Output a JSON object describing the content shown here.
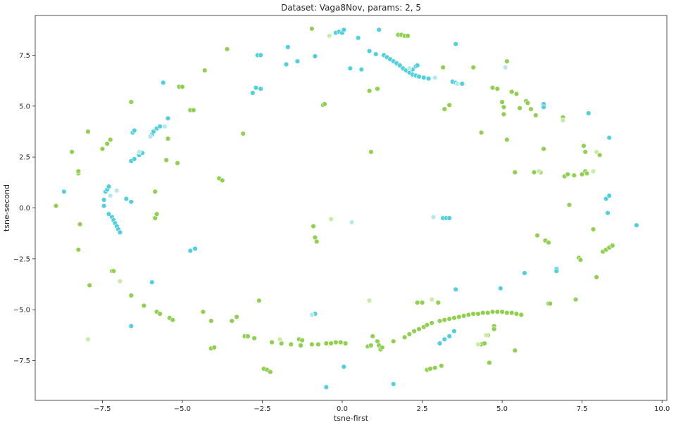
{
  "chart_data": {
    "type": "scatter",
    "title": "Dataset: Vaga8Nov, params: 2, 5",
    "xlabel": "tsne-first",
    "ylabel": "tsne-second",
    "xlim": [
      -9.6,
      10.15
    ],
    "ylim": [
      -9.45,
      9.45
    ],
    "xticks": [
      -7.5,
      -5.0,
      -2.5,
      0.0,
      2.5,
      5.0,
      7.5,
      10.0
    ],
    "xtick_labels": [
      "−7.5",
      "−5.0",
      "−2.5",
      "0.0",
      "2.5",
      "5.0",
      "7.5",
      "10.0"
    ],
    "yticks": [
      -7.5,
      -5.0,
      -2.5,
      0.0,
      2.5,
      5.0,
      7.5
    ],
    "ytick_labels": [
      "−7.5",
      "−5.0",
      "−2.5",
      "0.0",
      "2.5",
      "5.0",
      "7.5"
    ],
    "grid": false,
    "legend": "none",
    "colors": {
      "green": "#8fd14f",
      "cyan": "#4fd0dc",
      "light_green": "#c8eca6",
      "light_cyan": "#b3e9ef"
    },
    "series": [
      {
        "color": "#8fd14f",
        "points": [
          [
            -8.95,
            0.1
          ],
          [
            -8.45,
            2.75
          ],
          [
            -8.25,
            1.7
          ],
          [
            -8.25,
            1.8
          ],
          [
            -8.2,
            -0.8
          ],
          [
            -8.25,
            -2.05
          ],
          [
            -7.95,
            3.75
          ],
          [
            -7.9,
            -3.8
          ],
          [
            -7.5,
            2.9
          ],
          [
            -7.35,
            3.15
          ],
          [
            -7.25,
            3.35
          ],
          [
            -7.2,
            -3.1
          ],
          [
            -7.15,
            -3.1
          ],
          [
            -6.6,
            5.2
          ],
          [
            -6.6,
            -4.3
          ],
          [
            -6.2,
            -4.8
          ],
          [
            -5.85,
            0.8
          ],
          [
            -5.85,
            -0.5
          ],
          [
            -5.8,
            -0.3
          ],
          [
            -5.8,
            -5.1
          ],
          [
            -5.7,
            -5.2
          ],
          [
            -5.5,
            2.35
          ],
          [
            -5.45,
            3.4
          ],
          [
            -5.4,
            -5.4
          ],
          [
            -5.3,
            -5.5
          ],
          [
            -5.15,
            2.2
          ],
          [
            -5.1,
            5.95
          ],
          [
            -5.0,
            5.95
          ],
          [
            -4.75,
            4.8
          ],
          [
            -4.65,
            4.8
          ],
          [
            -4.3,
            6.75
          ],
          [
            -4.35,
            -5.1
          ],
          [
            -4.1,
            -5.55
          ],
          [
            -4.1,
            -6.9
          ],
          [
            -4.0,
            -6.85
          ],
          [
            -3.85,
            1.45
          ],
          [
            -3.75,
            1.35
          ],
          [
            -3.6,
            7.8
          ],
          [
            -3.45,
            -5.55
          ],
          [
            -3.3,
            -5.35
          ],
          [
            -3.1,
            3.65
          ],
          [
            -3.05,
            -6.3
          ],
          [
            -2.95,
            -6.3
          ],
          [
            -2.75,
            -6.4
          ],
          [
            -2.6,
            -4.55
          ],
          [
            -2.45,
            -7.9
          ],
          [
            -2.35,
            -7.95
          ],
          [
            -2.25,
            -8.05
          ],
          [
            -2.2,
            -6.6
          ],
          [
            -1.9,
            -6.65
          ],
          [
            -1.6,
            -6.7
          ],
          [
            -1.35,
            -6.45
          ],
          [
            -1.25,
            -6.5
          ],
          [
            -1.3,
            -6.75
          ],
          [
            -0.95,
            -6.7
          ],
          [
            -0.9,
            -0.9
          ],
          [
            -0.85,
            -1.45
          ],
          [
            -0.8,
            -1.65
          ],
          [
            -0.75,
            -6.7
          ],
          [
            -0.6,
            5.05
          ],
          [
            -0.55,
            5.1
          ],
          [
            -0.5,
            -6.65
          ],
          [
            -0.35,
            -6.65
          ],
          [
            -0.2,
            -6.6
          ],
          [
            -0.05,
            -6.6
          ],
          [
            0.1,
            -6.65
          ],
          [
            -0.95,
            8.8
          ],
          [
            0.8,
            -6.8
          ],
          [
            0.9,
            -6.75
          ],
          [
            0.95,
            -6.3
          ],
          [
            1.1,
            -6.55
          ],
          [
            1.15,
            -6.75
          ],
          [
            1.2,
            -6.95
          ],
          [
            1.25,
            -6.85
          ],
          [
            0.85,
            5.75
          ],
          [
            1.1,
            5.85
          ],
          [
            0.9,
            2.75
          ],
          [
            1.6,
            -6.55
          ],
          [
            1.75,
            8.5
          ],
          [
            1.85,
            8.5
          ],
          [
            1.95,
            8.45
          ],
          [
            2.05,
            8.45
          ],
          [
            1.95,
            -6.35
          ],
          [
            2.1,
            -6.2
          ],
          [
            2.25,
            -6.05
          ],
          [
            2.35,
            -4.65
          ],
          [
            2.5,
            -4.65
          ],
          [
            2.4,
            -5.95
          ],
          [
            2.55,
            -5.85
          ],
          [
            2.65,
            -5.75
          ],
          [
            2.8,
            -5.65
          ],
          [
            2.65,
            -7.95
          ],
          [
            2.75,
            -7.9
          ],
          [
            2.9,
            -7.85
          ],
          [
            3.0,
            -4.65
          ],
          [
            3.1,
            -7.75
          ],
          [
            3.05,
            -5.55
          ],
          [
            3.2,
            -5.5
          ],
          [
            3.35,
            -5.45
          ],
          [
            3.5,
            -5.4
          ],
          [
            3.65,
            -5.35
          ],
          [
            3.8,
            -5.3
          ],
          [
            3.95,
            -5.25
          ],
          [
            4.1,
            -5.2
          ],
          [
            4.25,
            -5.2
          ],
          [
            4.4,
            -5.15
          ],
          [
            4.55,
            -5.15
          ],
          [
            4.7,
            -5.1
          ],
          [
            4.85,
            -5.1
          ],
          [
            5.0,
            -5.1
          ],
          [
            5.15,
            -5.15
          ],
          [
            5.3,
            -5.15
          ],
          [
            5.45,
            -5.2
          ],
          [
            5.6,
            -5.25
          ],
          [
            3.15,
            6.9
          ],
          [
            3.2,
            4.85
          ],
          [
            3.35,
            5.05
          ],
          [
            4.1,
            6.9
          ],
          [
            4.35,
            3.7
          ],
          [
            4.6,
            -7.6
          ],
          [
            4.7,
            5.9
          ],
          [
            4.85,
            5.85
          ],
          [
            5.0,
            5.2
          ],
          [
            5.05,
            4.95
          ],
          [
            5.05,
            4.6
          ],
          [
            5.15,
            7.2
          ],
          [
            5.15,
            3.35
          ],
          [
            5.3,
            5.7
          ],
          [
            5.4,
            -7.0
          ],
          [
            5.45,
            5.6
          ],
          [
            5.4,
            1.75
          ],
          [
            5.55,
            4.9
          ],
          [
            5.75,
            5.25
          ],
          [
            5.8,
            5.15
          ],
          [
            5.9,
            4.85
          ],
          [
            6.0,
            1.75
          ],
          [
            6.1,
            -1.35
          ],
          [
            6.05,
            4.55
          ],
          [
            6.2,
            1.75
          ],
          [
            6.3,
            2.9
          ],
          [
            6.35,
            -1.6
          ],
          [
            6.45,
            -1.7
          ],
          [
            6.45,
            -4.7
          ],
          [
            6.5,
            -4.7
          ],
          [
            6.9,
            4.45
          ],
          [
            6.95,
            1.55
          ],
          [
            7.05,
            1.65
          ],
          [
            7.1,
            0.15
          ],
          [
            7.25,
            1.6
          ],
          [
            7.3,
            -4.5
          ],
          [
            7.4,
            -2.45
          ],
          [
            7.45,
            -2.55
          ],
          [
            7.5,
            1.65
          ],
          [
            7.55,
            3.05
          ],
          [
            7.6,
            2.75
          ],
          [
            7.6,
            1.8
          ],
          [
            7.65,
            1.7
          ],
          [
            7.85,
            -1.05
          ],
          [
            7.95,
            -3.4
          ],
          [
            8.05,
            2.6
          ],
          [
            8.15,
            -2.15
          ],
          [
            8.25,
            -2.05
          ],
          [
            8.35,
            -1.95
          ],
          [
            8.45,
            -1.85
          ],
          [
            4.35,
            -6.7
          ],
          [
            4.45,
            -6.65
          ],
          [
            4.75,
            -5.8
          ],
          [
            4.55,
            -6.25
          ],
          [
            4.75,
            -5.95
          ]
        ]
      },
      {
        "color": "#4fd0dc",
        "points": [
          [
            -8.7,
            0.8
          ],
          [
            -7.45,
            0.4
          ],
          [
            -7.45,
            0.1
          ],
          [
            -7.4,
            0.8
          ],
          [
            -7.35,
            0.9
          ],
          [
            -7.3,
            1.05
          ],
          [
            -7.3,
            -0.3
          ],
          [
            -7.2,
            -0.45
          ],
          [
            -7.15,
            -0.6
          ],
          [
            -7.1,
            -0.75
          ],
          [
            -7.05,
            -0.9
          ],
          [
            -7.0,
            -1.05
          ],
          [
            -6.95,
            -1.2
          ],
          [
            -6.75,
            0.45
          ],
          [
            -6.6,
            0.3
          ],
          [
            -6.6,
            2.3
          ],
          [
            -6.5,
            2.4
          ],
          [
            -6.55,
            3.7
          ],
          [
            -6.5,
            3.8
          ],
          [
            -6.35,
            2.6
          ],
          [
            -6.25,
            2.7
          ],
          [
            -6.6,
            -5.8
          ],
          [
            -5.95,
            3.6
          ],
          [
            -5.9,
            3.75
          ],
          [
            -5.8,
            3.9
          ],
          [
            -5.7,
            4.0
          ],
          [
            -5.6,
            6.15
          ],
          [
            -5.45,
            4.4
          ],
          [
            -5.95,
            -3.65
          ],
          [
            -4.75,
            -2.1
          ],
          [
            -4.6,
            -2.0
          ],
          [
            -2.8,
            5.65
          ],
          [
            -2.7,
            5.9
          ],
          [
            -2.55,
            5.85
          ],
          [
            -2.65,
            7.5
          ],
          [
            -2.55,
            7.5
          ],
          [
            -1.75,
            7.05
          ],
          [
            -1.7,
            7.9
          ],
          [
            -1.4,
            7.2
          ],
          [
            -0.85,
            7.45
          ],
          [
            -0.85,
            -5.2
          ],
          [
            -0.2,
            8.6
          ],
          [
            -0.1,
            8.65
          ],
          [
            0.0,
            8.6
          ],
          [
            0.05,
            8.75
          ],
          [
            0.25,
            6.85
          ],
          [
            0.5,
            8.35
          ],
          [
            0.6,
            6.8
          ],
          [
            0.85,
            7.7
          ],
          [
            1.05,
            7.55
          ],
          [
            1.15,
            8.75
          ],
          [
            1.3,
            7.5
          ],
          [
            1.4,
            7.4
          ],
          [
            1.5,
            7.3
          ],
          [
            1.6,
            7.2
          ],
          [
            1.7,
            7.1
          ],
          [
            1.8,
            7.0
          ],
          [
            1.9,
            6.85
          ],
          [
            2.0,
            6.75
          ],
          [
            2.1,
            6.65
          ],
          [
            2.2,
            6.55
          ],
          [
            2.3,
            6.5
          ],
          [
            2.4,
            6.45
          ],
          [
            2.55,
            6.4
          ],
          [
            2.7,
            6.35
          ],
          [
            2.2,
            6.8
          ],
          [
            2.3,
            6.95
          ],
          [
            2.35,
            7.0
          ],
          [
            3.15,
            -0.5
          ],
          [
            3.25,
            -0.5
          ],
          [
            3.35,
            -0.5
          ],
          [
            3.45,
            6.2
          ],
          [
            3.55,
            6.15
          ],
          [
            3.75,
            6.1
          ],
          [
            3.55,
            8.05
          ],
          [
            3.55,
            -4.0
          ],
          [
            3.5,
            -6.05
          ],
          [
            3.35,
            -6.3
          ],
          [
            3.2,
            -6.45
          ],
          [
            3.05,
            -6.65
          ],
          [
            4.95,
            -3.95
          ],
          [
            5.7,
            -3.2
          ],
          [
            6.3,
            5.1
          ],
          [
            6.3,
            4.95
          ],
          [
            6.7,
            -3.0
          ],
          [
            6.7,
            -3.1
          ],
          [
            7.7,
            4.65
          ],
          [
            8.25,
            0.45
          ],
          [
            8.3,
            -0.25
          ],
          [
            8.35,
            0.6
          ],
          [
            8.35,
            3.45
          ],
          [
            9.2,
            -0.85
          ],
          [
            0.05,
            -7.8
          ],
          [
            -0.5,
            -8.8
          ],
          [
            1.6,
            -8.65
          ]
        ]
      },
      {
        "color": "#c8eca6",
        "points": [
          [
            -7.95,
            -6.45
          ],
          [
            -6.95,
            -3.6
          ],
          [
            -1.95,
            -6.45
          ],
          [
            0.85,
            -4.55
          ],
          [
            -0.4,
            8.45
          ],
          [
            2.8,
            -4.5
          ],
          [
            4.5,
            -6.25
          ],
          [
            6.9,
            4.3
          ],
          [
            7.85,
            1.8
          ],
          [
            6.15,
            1.8
          ],
          [
            7.95,
            2.75
          ],
          [
            4.25,
            -6.7
          ],
          [
            -0.35,
            -0.55
          ]
        ]
      },
      {
        "color": "#b3e9ef",
        "points": [
          [
            -7.25,
            0.6
          ],
          [
            -7.05,
            0.85
          ],
          [
            -5.55,
            4.0
          ],
          [
            -6.35,
            2.75
          ],
          [
            2.85,
            -0.45
          ],
          [
            2.9,
            6.4
          ],
          [
            3.6,
            6.1
          ],
          [
            5.1,
            6.9
          ],
          [
            2.1,
            6.85
          ],
          [
            0.3,
            -0.7
          ],
          [
            -0.95,
            -5.25
          ],
          [
            -6.0,
            3.5
          ]
        ]
      }
    ]
  }
}
